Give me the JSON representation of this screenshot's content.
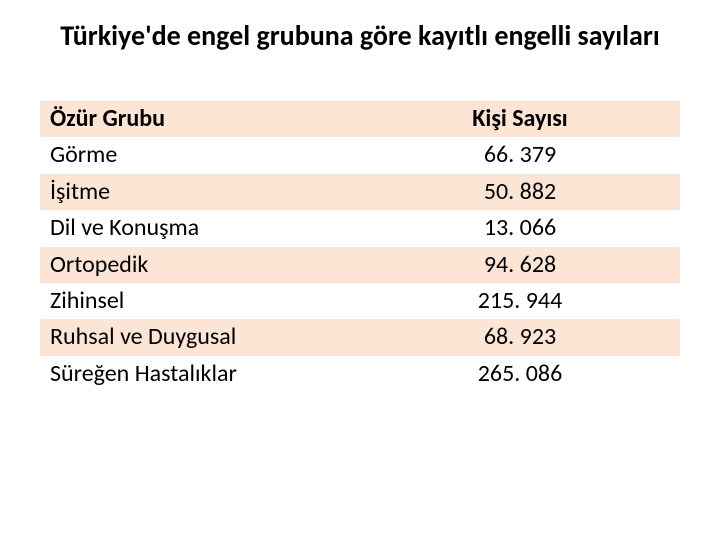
{
  "slide": {
    "title": "Türkiye'de engel grubuna göre kayıtlı engelli sayıları",
    "title_fontsize": 28,
    "title_color": "#000000",
    "background_color": "#ffffff"
  },
  "table": {
    "type": "table",
    "columns": [
      {
        "label": "Özür Grubu",
        "align": "left",
        "width": "50%"
      },
      {
        "label": "Kişi Sayısı",
        "align": "center",
        "width": "50%"
      }
    ],
    "rows": [
      [
        "Görme",
        "66. 379"
      ],
      [
        "İşitme",
        "50. 882"
      ],
      [
        "Dil ve Konuşma",
        "13. 066"
      ],
      [
        "Ortopedik",
        "94. 628"
      ],
      [
        "Zihinsel",
        "215. 944"
      ],
      [
        "Ruhsal ve Duygusal",
        "68. 923"
      ],
      [
        "Süreğen Hastalıklar",
        "265. 086"
      ]
    ],
    "row_colors": {
      "even": "#fce5d5",
      "odd": "#ffffff"
    },
    "cell_fontsize": 24,
    "cell_color": "#000000",
    "header_fontweight": 700
  }
}
